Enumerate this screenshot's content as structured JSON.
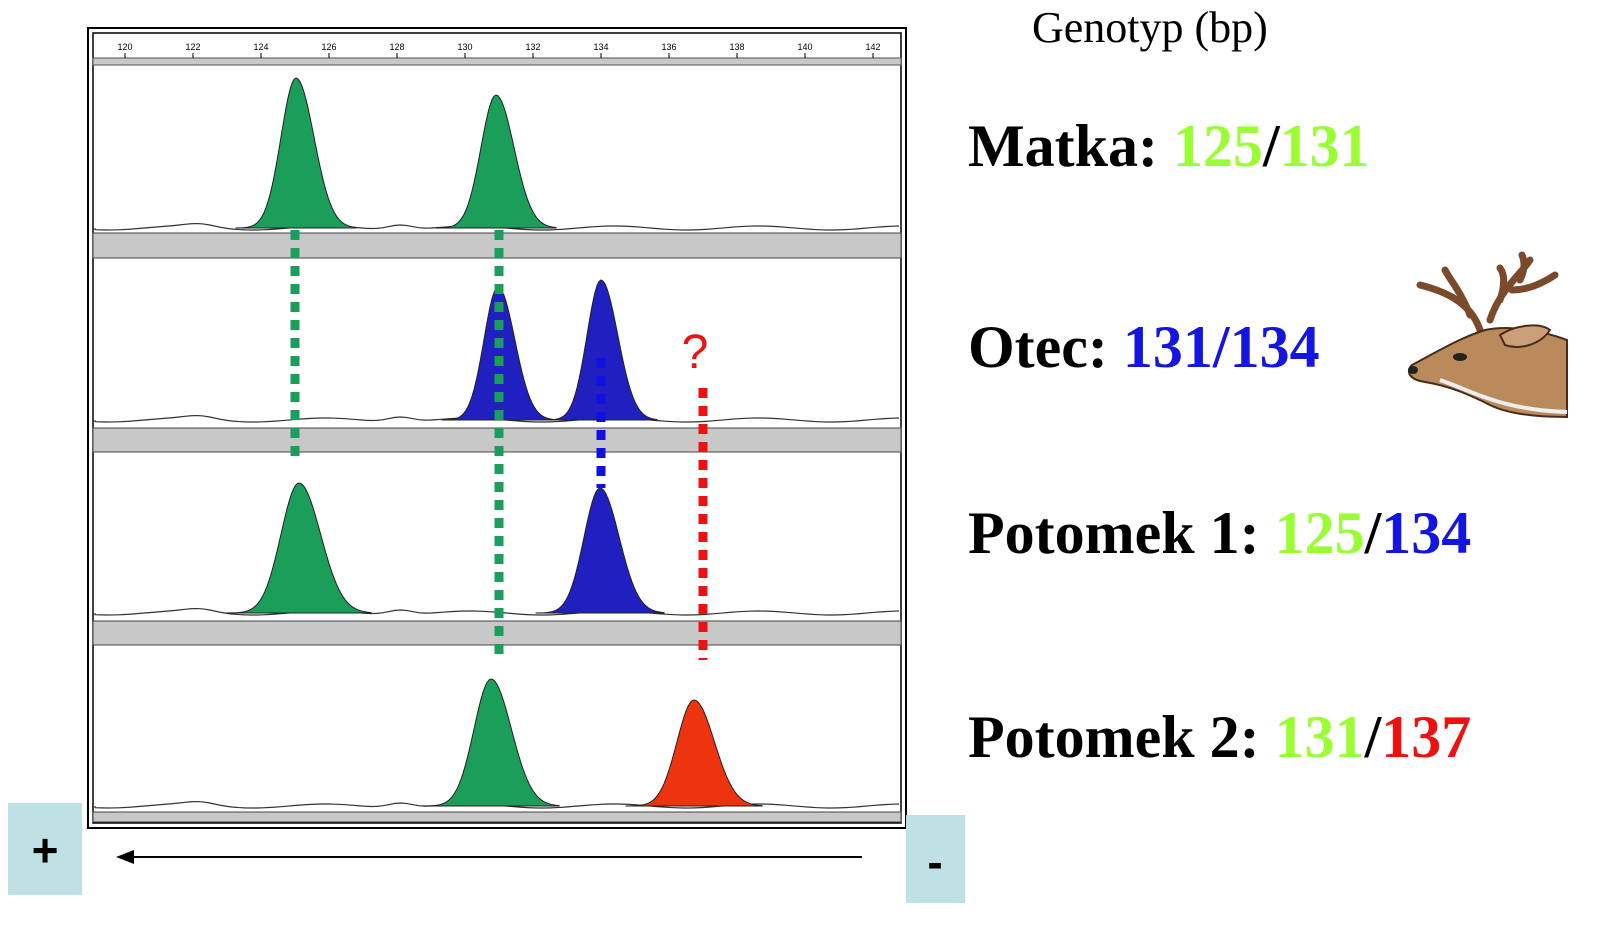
{
  "header": {
    "title": "Genotyp (bp)"
  },
  "ruler": {
    "ticks": [
      120,
      122,
      124,
      126,
      128,
      130,
      132,
      134,
      136,
      138,
      140,
      142
    ]
  },
  "question": "?",
  "direction": {
    "plus": "+",
    "minus": "-"
  },
  "rows": [
    {
      "label": "Matka:",
      "first": "125",
      "separator": "/",
      "second": "131"
    },
    {
      "label": "Otec:",
      "first": "131",
      "separator": "/",
      "second": "134"
    },
    {
      "label": "Potomek 1:",
      "first": "125",
      "separator": "/",
      "second": "134"
    },
    {
      "label": "Potomek 2:",
      "first": "131",
      "separator": "/",
      "second": "137"
    }
  ]
}
